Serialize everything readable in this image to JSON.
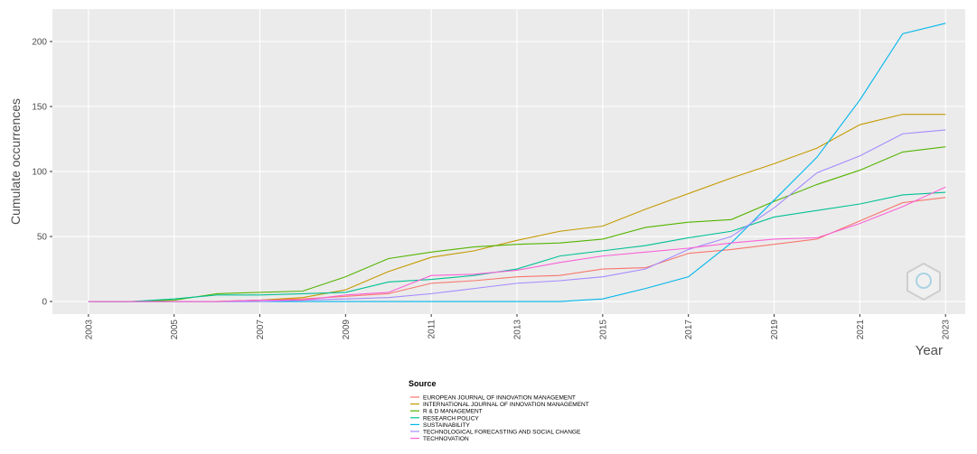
{
  "chart_data": {
    "type": "line",
    "x_label": "Year",
    "y_label": "Cumulate occurrences",
    "legend_title": "Source",
    "x": [
      2003,
      2004,
      2005,
      2006,
      2007,
      2008,
      2009,
      2010,
      2011,
      2012,
      2013,
      2014,
      2015,
      2016,
      2017,
      2018,
      2019,
      2020,
      2021,
      2022,
      2023
    ],
    "xlim": [
      2002.16,
      2023.46
    ],
    "xticks": [
      2003,
      2005,
      2007,
      2009,
      2011,
      2013,
      2015,
      2017,
      2019,
      2021,
      2023
    ],
    "ylim": [
      -9.7,
      225
    ],
    "yticks": [
      0,
      50,
      100,
      150,
      200
    ],
    "grid": true,
    "legend": "bottom",
    "series": [
      {
        "name": "EUROPEAN JOURNAL OF INNOVATION MANAGEMENT",
        "color": "#F8766D",
        "values": [
          0,
          0,
          0,
          0,
          1,
          2,
          4,
          6,
          14,
          16,
          19,
          20,
          25,
          26,
          37,
          40,
          44,
          48,
          62,
          76,
          80
        ]
      },
      {
        "name": "INTERNATIONAL JOURNAL OF INNOVATION MANAGEMENT",
        "color": "#C49A00",
        "values": [
          0,
          0,
          0,
          0,
          1,
          3,
          9,
          23,
          34,
          39,
          47,
          54,
          58,
          71,
          83,
          95,
          106,
          118,
          136,
          144,
          144
        ]
      },
      {
        "name": "R & D MANAGEMENT",
        "color": "#53B400",
        "values": [
          0,
          0,
          1,
          6,
          7,
          8,
          19,
          33,
          38,
          42,
          44,
          45,
          48,
          57,
          61,
          63,
          77,
          90,
          101,
          115,
          119
        ]
      },
      {
        "name": "RESEARCH POLICY",
        "color": "#00C094",
        "values": [
          0,
          0,
          2,
          5,
          5,
          6,
          7,
          15,
          17,
          20,
          25,
          35,
          39,
          43,
          49,
          54,
          65,
          70,
          75,
          82,
          84
        ]
      },
      {
        "name": "SUSTAINABILITY",
        "color": "#00B6EB",
        "values": [
          0,
          0,
          0,
          0,
          0,
          0,
          0,
          0,
          0,
          0,
          0,
          0,
          2,
          10,
          19,
          45,
          78,
          111,
          155,
          206,
          214
        ]
      },
      {
        "name": "TECHNOLOGICAL FORECASTING AND SOCIAL CHANGE",
        "color": "#A58AFF",
        "values": [
          0,
          0,
          0,
          0,
          0,
          1,
          2,
          3,
          6,
          10,
          14,
          16,
          19,
          25,
          40,
          50,
          72,
          99,
          112,
          129,
          132
        ]
      },
      {
        "name": "TECHNOVATION",
        "color": "#FB61D7",
        "values": [
          0,
          0,
          0,
          0,
          1,
          1,
          5,
          7,
          20,
          21,
          24,
          30,
          35,
          38,
          41,
          45,
          48,
          49,
          60,
          73,
          88
        ]
      }
    ]
  }
}
